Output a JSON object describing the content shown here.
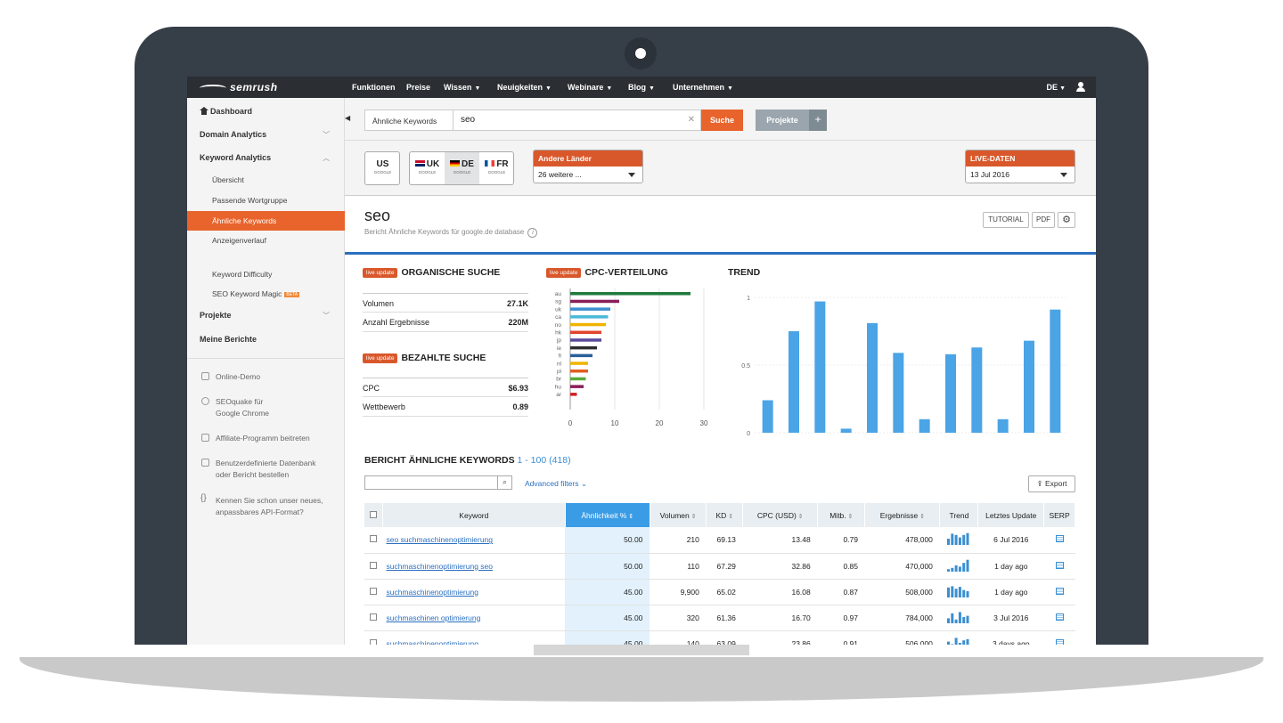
{
  "nav": {
    "logo": "semrush",
    "items": [
      {
        "label": "Funktionen",
        "caret": false
      },
      {
        "label": "Preise",
        "caret": false
      },
      {
        "label": "Wissen",
        "caret": true
      },
      {
        "label": "Neuigkeiten",
        "caret": true
      },
      {
        "label": "Webinare",
        "caret": true
      },
      {
        "label": "Blog",
        "caret": true
      },
      {
        "label": "Unternehmen",
        "caret": true
      }
    ],
    "language": "DE"
  },
  "sidebar": {
    "dashboard": "Dashboard",
    "domain_analytics": "Domain Analytics",
    "keyword_analytics": "Keyword Analytics",
    "sub_items": [
      "Übersicht",
      "Passende Wortgruppe",
      "Ähnliche Keywords",
      "Anzeigenverlauf"
    ],
    "keyword_difficulty": "Keyword Difficulty",
    "keyword_magic": "SEO Keyword Magic",
    "beta": "BETA",
    "projekte": "Projekte",
    "meine_berichte": "Meine Berichte",
    "tools": [
      "Online-Demo",
      "SEOquake für\nGoogle Chrome",
      "Affiliate-Programm beitreten",
      "Benutzerdefinierte Datenbank\noder Bericht bestellen",
      "Kennen Sie schon unser neues,\nanpassbares API-Format?"
    ]
  },
  "search": {
    "type": "Ähnliche Keywords",
    "value": "seo",
    "button": "Suche",
    "projekte": "Projekte",
    "plus": "+"
  },
  "databases": {
    "us": "US",
    "uk": "UK",
    "de": "DE",
    "fr": "FR",
    "google": "GOOGLE",
    "other_countries_label": "Andere Länder",
    "other_countries_value": "26 weitere ...",
    "live_label": "LIVE-DATEN",
    "live_value": "13 Jul 2016"
  },
  "report": {
    "title": "seo",
    "subtitle": "Bericht Ähnliche Keywords für google.de database",
    "tutorial": "TUTORIAL",
    "pdf": "PDF",
    "live_update": "live update",
    "organic_head": "ORGANISCHE SUCHE",
    "organic": [
      {
        "k": "Volumen",
        "v": "27.1K"
      },
      {
        "k": "Anzahl Ergebnisse",
        "v": "220M"
      }
    ],
    "paid_head": "BEZAHLTE SUCHE",
    "paid": [
      {
        "k": "CPC",
        "v": "$6.93"
      },
      {
        "k": "Wettbewerb",
        "v": "0.89"
      }
    ],
    "cpc_head": "CPC-VERTEILUNG",
    "trend_head": "TREND"
  },
  "chart_data": [
    {
      "type": "bar",
      "title": "CPC-VERTEILUNG",
      "orientation": "horizontal",
      "categories": [
        "au",
        "sg",
        "uk",
        "ca",
        "no",
        "hk",
        "jp",
        "ie",
        "fi",
        "nl",
        "pl",
        "br",
        "hu",
        "ar"
      ],
      "values": [
        27,
        11,
        9,
        8.5,
        8,
        7,
        7,
        6,
        5,
        4,
        4,
        3.5,
        3,
        1.5
      ],
      "colors": [
        "#1e7a3c",
        "#8a1f5a",
        "#3d8fd0",
        "#4cb8d8",
        "#f0b400",
        "#e0452c",
        "#5a4a9a",
        "#2e2e2e",
        "#2c5f9a",
        "#f0b400",
        "#e06020",
        "#5aaa3c",
        "#8a1f5a",
        "#cc2222"
      ],
      "xlim": [
        0,
        30
      ],
      "xticks": [
        "0",
        "10",
        "20",
        "30"
      ]
    },
    {
      "type": "bar",
      "title": "TREND",
      "categories": [
        "1",
        "2",
        "3",
        "4",
        "5",
        "6",
        "7",
        "8",
        "9",
        "10",
        "11",
        "12"
      ],
      "values": [
        0.24,
        0.75,
        0.97,
        0.03,
        0.81,
        0.59,
        0.1,
        0.58,
        0.63,
        0.1,
        0.68,
        0.91
      ],
      "ylim": [
        0,
        1
      ],
      "yticks": [
        "0",
        "0.5",
        "1"
      ],
      "color": "#4aa4e6"
    }
  ],
  "table": {
    "title": "BERICHT ÄHNLICHE KEYWORDS",
    "count": "1 - 100 (418)",
    "advanced_filters": "Advanced filters",
    "export": "Export",
    "columns": [
      "Keyword",
      "Ähnlichkeit %",
      "Volumen",
      "KD",
      "CPC (USD)",
      "Mitb.",
      "Ergebnisse",
      "Trend",
      "Letztes Update",
      "SERP"
    ],
    "rows": [
      {
        "keyword": "seo suchmaschinenoptimierung",
        "sim": "50.00",
        "vol": "210",
        "kd": "69.13",
        "cpc": "13.48",
        "comp": "0.79",
        "results": "478,000",
        "trend": [
          0.5,
          0.9,
          0.8,
          0.6,
          0.8,
          0.95
        ],
        "update": "6 Jul 2016"
      },
      {
        "keyword": "suchmaschinenoptimierung seo",
        "sim": "50.00",
        "vol": "110",
        "kd": "67.29",
        "cpc": "32.86",
        "comp": "0.85",
        "results": "470,000",
        "trend": [
          0.2,
          0.3,
          0.5,
          0.4,
          0.7,
          0.95
        ],
        "update": "1 day ago"
      },
      {
        "keyword": "suchmaschinenoptimierung",
        "sim": "45.00",
        "vol": "9,900",
        "kd": "65.02",
        "cpc": "16.08",
        "comp": "0.87",
        "results": "508,000",
        "trend": [
          0.8,
          0.9,
          0.7,
          0.85,
          0.6,
          0.5
        ],
        "update": "1 day ago"
      },
      {
        "keyword": "suchmaschinen optimierung",
        "sim": "45.00",
        "vol": "320",
        "kd": "61.36",
        "cpc": "16.70",
        "comp": "0.97",
        "results": "784,000",
        "trend": [
          0.4,
          0.8,
          0.3,
          0.9,
          0.5,
          0.6
        ],
        "update": "3 Jul 2016"
      },
      {
        "keyword": "suchmaschinenoptimierung",
        "sim": "45.00",
        "vol": "140",
        "kd": "63.09",
        "cpc": "23.86",
        "comp": "0.91",
        "results": "506,000",
        "trend": [
          0.6,
          0.4,
          0.9,
          0.5,
          0.7,
          0.8
        ],
        "update": "3 days ago"
      }
    ]
  },
  "colors": {
    "accent": "#e8642c",
    "nav": "#2b2f33",
    "link": "#2a6fc0",
    "sorted": "#3b9ce6",
    "frame": "#363e48"
  }
}
